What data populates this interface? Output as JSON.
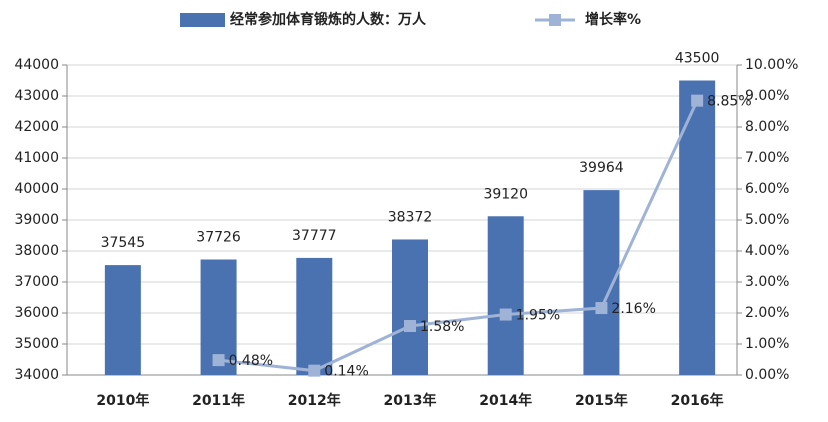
{
  "chart_data": {
    "type": "bar+line",
    "categories": [
      "2010年",
      "2011年",
      "2012年",
      "2013年",
      "2014年",
      "2015年",
      "2016年"
    ],
    "series": [
      {
        "name": "经常参加体育锻炼的人数：万人",
        "type": "bar",
        "color": "#4a72b0",
        "axis": "y",
        "values": [
          37545,
          37726,
          37777,
          38372,
          39120,
          39964,
          43500
        ]
      },
      {
        "name": "增长率%",
        "type": "line",
        "color": "#9fb3d6",
        "axis": "y2",
        "values": [
          null,
          0.48,
          0.14,
          1.58,
          1.95,
          2.16,
          8.85
        ],
        "value_labels": [
          null,
          "0.48%",
          "0.14%",
          "1.58%",
          "1.95%",
          "2.16%",
          "8.85%"
        ]
      }
    ],
    "ylim": [
      34000,
      44000
    ],
    "yticks": [
      34000,
      35000,
      36000,
      37000,
      38000,
      39000,
      40000,
      41000,
      42000,
      43000,
      44000
    ],
    "y2lim": [
      0,
      10
    ],
    "y2ticks": [
      {
        "value": 0,
        "label": "0.00%"
      },
      {
        "value": 1,
        "label": "1.00%"
      },
      {
        "value": 2,
        "label": "2.00%"
      },
      {
        "value": 3,
        "label": "3.00%"
      },
      {
        "value": 4,
        "label": "4.00%"
      },
      {
        "value": 5,
        "label": "5.00%"
      },
      {
        "value": 6,
        "label": "6.00%"
      },
      {
        "value": 7,
        "label": "7.00%"
      },
      {
        "value": 8,
        "label": "8.00%"
      },
      {
        "value": 9,
        "label": "9.00%"
      },
      {
        "value": 10,
        "label": "10.00%"
      }
    ],
    "grid": true,
    "legend": "top"
  }
}
